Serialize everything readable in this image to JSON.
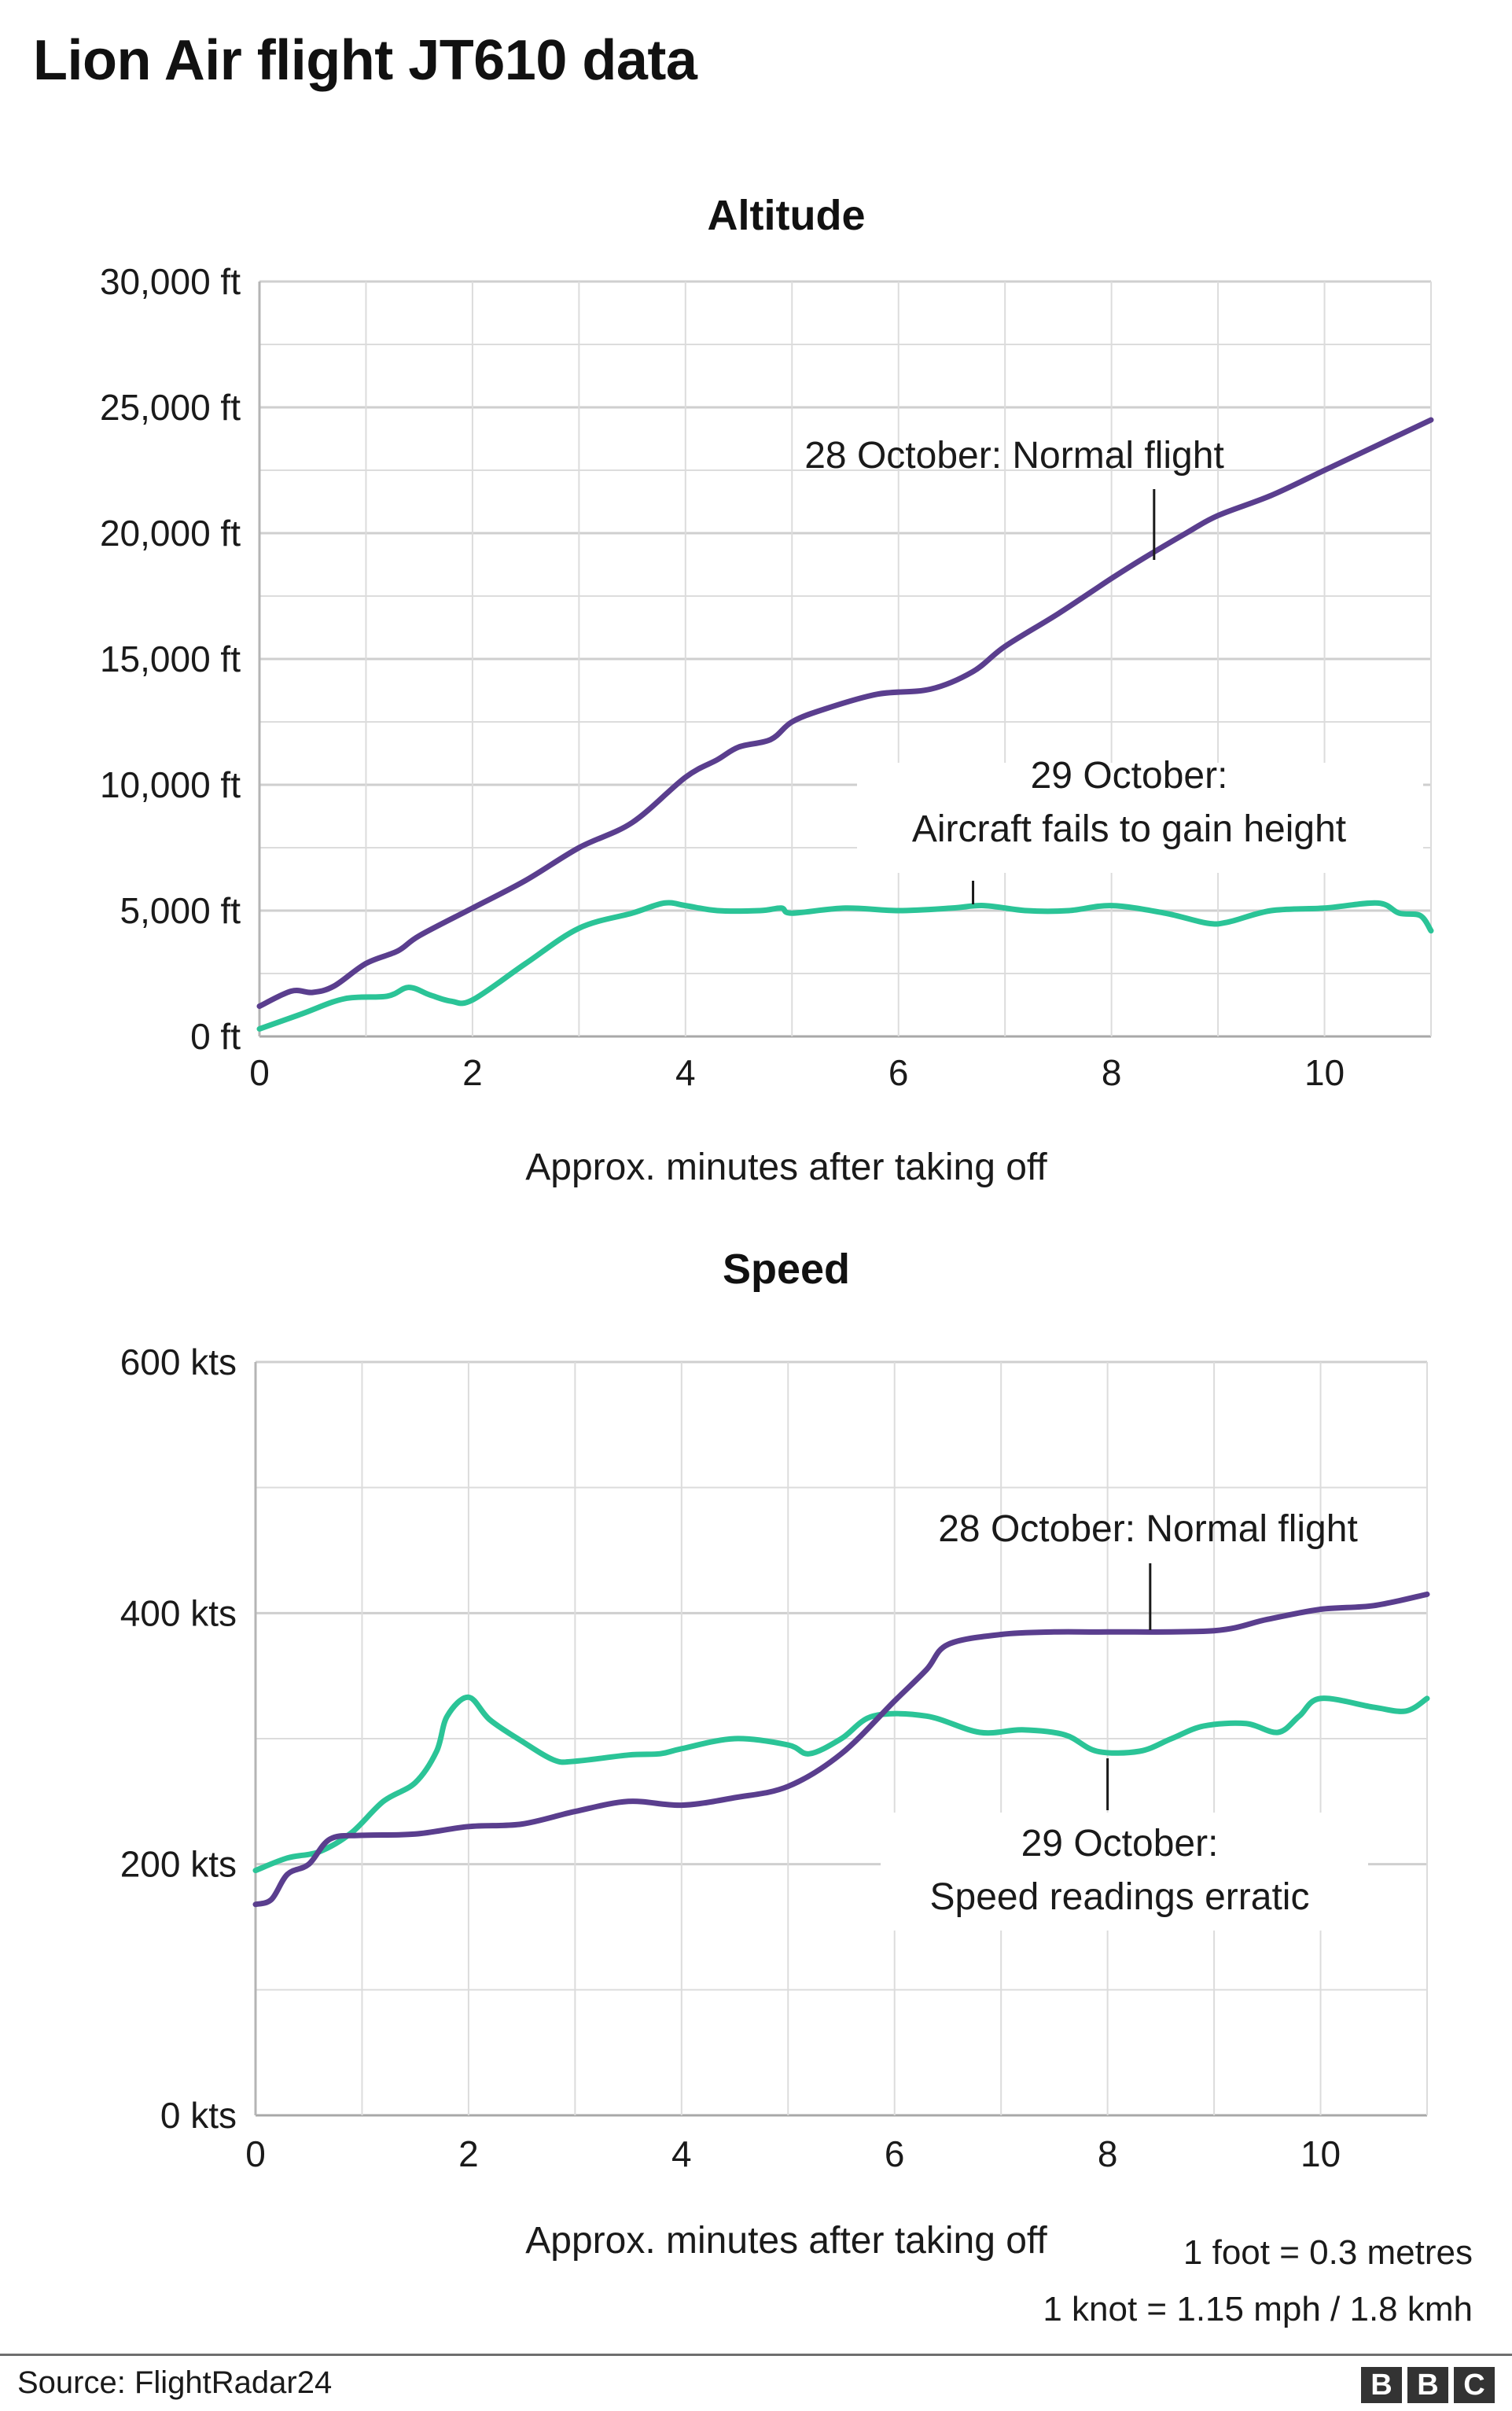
{
  "title": "Lion Air flight JT610 data",
  "colors": {
    "normal": "#5a3e8e",
    "crash": "#2bc497",
    "grid": "#dcdcdc",
    "annotation_line": "#1a1a1a"
  },
  "notes": [
    "1 foot = 0.3 metres",
    "1 knot = 1.15 mph / 1.8 kmh"
  ],
  "source": "Source: FlightRadar24",
  "logo": [
    "B",
    "B",
    "C"
  ],
  "chart_data": [
    {
      "type": "line",
      "title": "Altitude",
      "xlabel": "Approx. minutes after taking off",
      "ylabel": "",
      "xlim": [
        0,
        11
      ],
      "ylim": [
        0,
        30000
      ],
      "x_ticks": [
        0,
        2,
        4,
        6,
        8,
        10
      ],
      "x_tick_labels": [
        "0",
        "2",
        "4",
        "6",
        "8",
        "10"
      ],
      "y_ticks": [
        0,
        5000,
        10000,
        15000,
        20000,
        25000,
        30000
      ],
      "y_tick_labels": [
        "0 ft",
        "5,000 ft",
        "10,000 ft",
        "15,000 ft",
        "20,000 ft",
        "25,000 ft",
        "30,000 ft"
      ],
      "grid": true,
      "series": [
        {
          "key": "normal",
          "points": [
            [
              0,
              1200
            ],
            [
              0.3,
              1800
            ],
            [
              0.5,
              1750
            ],
            [
              0.7,
              2000
            ],
            [
              1,
              2900
            ],
            [
              1.3,
              3400
            ],
            [
              1.5,
              4000
            ],
            [
              2,
              5100
            ],
            [
              2.5,
              6200
            ],
            [
              3,
              7500
            ],
            [
              3.5,
              8500
            ],
            [
              4,
              10300
            ],
            [
              4.3,
              11000
            ],
            [
              4.5,
              11500
            ],
            [
              4.8,
              11800
            ],
            [
              5,
              12500
            ],
            [
              5.3,
              13000
            ],
            [
              5.8,
              13600
            ],
            [
              6.3,
              13800
            ],
            [
              6.7,
              14500
            ],
            [
              7,
              15500
            ],
            [
              7.5,
              16800
            ],
            [
              8,
              18200
            ],
            [
              8.3,
              19000
            ],
            [
              8.7,
              20000
            ],
            [
              9,
              20700
            ],
            [
              9.5,
              21500
            ],
            [
              10,
              22500
            ],
            [
              10.5,
              23500
            ],
            [
              11,
              24500
            ]
          ]
        },
        {
          "key": "crash",
          "points": [
            [
              0,
              300
            ],
            [
              0.4,
              900
            ],
            [
              0.8,
              1500
            ],
            [
              1.2,
              1600
            ],
            [
              1.4,
              1950
            ],
            [
              1.6,
              1650
            ],
            [
              1.8,
              1400
            ],
            [
              2,
              1450
            ],
            [
              2.5,
              2900
            ],
            [
              3,
              4300
            ],
            [
              3.5,
              4900
            ],
            [
              3.8,
              5300
            ],
            [
              4,
              5200
            ],
            [
              4.3,
              5000
            ],
            [
              4.7,
              5000
            ],
            [
              4.9,
              5100
            ],
            [
              5,
              4900
            ],
            [
              5.5,
              5100
            ],
            [
              6,
              5000
            ],
            [
              6.5,
              5100
            ],
            [
              6.8,
              5200
            ],
            [
              7.2,
              5000
            ],
            [
              7.6,
              5000
            ],
            [
              8,
              5200
            ],
            [
              8.5,
              4900
            ],
            [
              8.9,
              4500
            ],
            [
              9.1,
              4550
            ],
            [
              9.5,
              5000
            ],
            [
              10,
              5100
            ],
            [
              10.5,
              5300
            ],
            [
              10.7,
              4900
            ],
            [
              10.9,
              4800
            ],
            [
              11,
              4200
            ]
          ]
        }
      ],
      "annotations": [
        {
          "lines": [
            "28 October: Normal flight"
          ],
          "x": 8.4,
          "y": 19200
        },
        {
          "lines": [
            "29 October:",
            "Aircraft fails to gain height"
          ],
          "x": 6.7,
          "y": 5200
        }
      ]
    },
    {
      "type": "line",
      "title": "Speed",
      "xlabel": "Approx. minutes after taking off",
      "ylabel": "",
      "xlim": [
        0,
        11
      ],
      "ylim": [
        0,
        600
      ],
      "x_ticks": [
        0,
        2,
        4,
        6,
        8,
        10
      ],
      "x_tick_labels": [
        "0",
        "2",
        "4",
        "6",
        "8",
        "10"
      ],
      "y_ticks": [
        0,
        200,
        400,
        600
      ],
      "y_tick_labels": [
        "0 kts",
        "200 kts",
        "400 kts",
        "600 kts"
      ],
      "grid": true,
      "series": [
        {
          "key": "normal",
          "points": [
            [
              0,
              168
            ],
            [
              0.15,
              172
            ],
            [
              0.3,
              192
            ],
            [
              0.5,
              200
            ],
            [
              0.7,
              220
            ],
            [
              1,
              223
            ],
            [
              1.5,
              224
            ],
            [
              2,
              230
            ],
            [
              2.5,
              232
            ],
            [
              3,
              242
            ],
            [
              3.5,
              250
            ],
            [
              4,
              247
            ],
            [
              4.5,
              253
            ],
            [
              5,
              262
            ],
            [
              5.5,
              288
            ],
            [
              6,
              330
            ],
            [
              6.3,
              355
            ],
            [
              6.5,
              375
            ],
            [
              7,
              383
            ],
            [
              7.5,
              385
            ],
            [
              8,
              385
            ],
            [
              9,
              386
            ],
            [
              9.5,
              395
            ],
            [
              10,
              403
            ],
            [
              10.5,
              406
            ],
            [
              11,
              415
            ]
          ]
        },
        {
          "key": "crash",
          "points": [
            [
              0,
              195
            ],
            [
              0.3,
              205
            ],
            [
              0.6,
              210
            ],
            [
              0.9,
              225
            ],
            [
              1.2,
              250
            ],
            [
              1.5,
              265
            ],
            [
              1.7,
              290
            ],
            [
              1.8,
              318
            ],
            [
              2,
              333
            ],
            [
              2.2,
              315
            ],
            [
              2.5,
              298
            ],
            [
              2.8,
              283
            ],
            [
              3,
              282
            ],
            [
              3.5,
              287
            ],
            [
              3.8,
              288
            ],
            [
              4,
              292
            ],
            [
              4.5,
              300
            ],
            [
              5,
              295
            ],
            [
              5.2,
              288
            ],
            [
              5.5,
              300
            ],
            [
              5.8,
              318
            ],
            [
              6.3,
              318
            ],
            [
              6.8,
              305
            ],
            [
              7.2,
              307
            ],
            [
              7.6,
              303
            ],
            [
              7.9,
              290
            ],
            [
              8.3,
              290
            ],
            [
              8.6,
              300
            ],
            [
              8.9,
              310
            ],
            [
              9.3,
              312
            ],
            [
              9.6,
              305
            ],
            [
              9.8,
              318
            ],
            [
              10,
              332
            ],
            [
              10.5,
              325
            ],
            [
              10.8,
              322
            ],
            [
              11,
              332
            ]
          ]
        }
      ],
      "annotations": [
        {
          "lines": [
            "28 October: Normal flight"
          ],
          "x": 8.4,
          "y": 385
        },
        {
          "lines": [
            "29 October:",
            "Speed readings erratic"
          ],
          "x": 8,
          "y": 290
        }
      ]
    }
  ]
}
